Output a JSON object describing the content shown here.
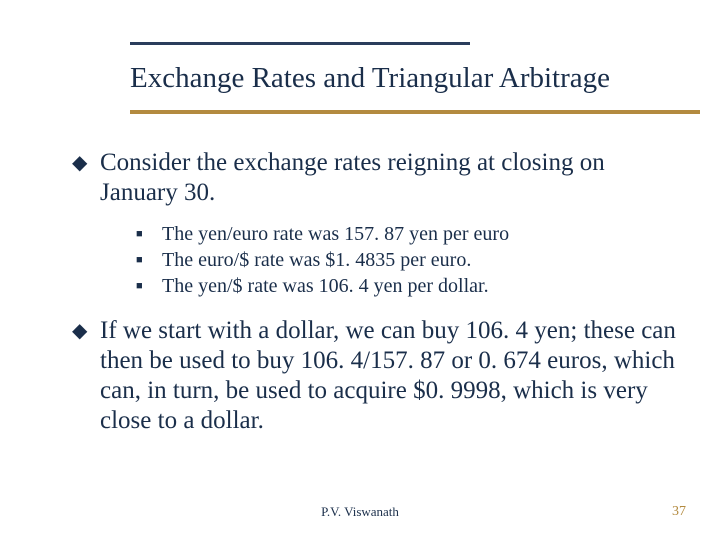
{
  "title": "Exchange Rates and Triangular Arbitrage",
  "bullets": {
    "main1": "Consider the exchange rates reigning at closing on January 30.",
    "sub1": "The yen/euro rate was 157. 87 yen per euro",
    "sub2": "The euro/$ rate was $1. 4835 per euro.",
    "sub3": "The yen/$ rate was 106. 4 yen per dollar.",
    "main2": "If we start with a dollar, we can buy 106. 4 yen; these can then be used to buy 106. 4/157. 87 or 0. 674 euros, which can, in turn, be used to acquire $0. 9998, which is very close to a dollar."
  },
  "footer": {
    "author": "P.V. Viswanath",
    "page": "37"
  },
  "style": {
    "rule_top_color": "#2a3d5c",
    "rule_bottom_color": "#b38a3f",
    "text_color": "#1a2e4a",
    "page_color": "#b38a3f",
    "title_fontsize": 29,
    "body_fontsize": 25,
    "sub_fontsize": 20,
    "footer_fontsize": 13
  }
}
